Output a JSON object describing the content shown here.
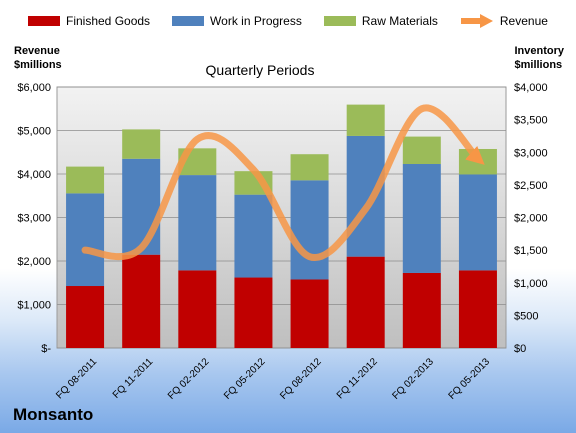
{
  "company": "Monsanto",
  "chart_data": {
    "type": "bar",
    "title": "Quarterly Periods",
    "categories": [
      "FQ 08-2011",
      "FQ 11-2011",
      "FQ 02-2012",
      "FQ 05-2012",
      "FQ 08-2012",
      "FQ 11-2012",
      "FQ 02-2013",
      "FQ 05-2013"
    ],
    "stacked": true,
    "series": [
      {
        "name": "Finished Goods",
        "axis": "right",
        "color": "#c00000",
        "values": [
          950,
          1430,
          1190,
          1080,
          1050,
          1400,
          1150,
          1190
        ]
      },
      {
        "name": "Work in Progress",
        "axis": "right",
        "color": "#4f81bd",
        "values": [
          1420,
          1470,
          1460,
          1270,
          1520,
          1850,
          1670,
          1470
        ]
      },
      {
        "name": "Raw Materials",
        "axis": "right",
        "color": "#9bbb59",
        "values": [
          410,
          450,
          410,
          360,
          400,
          480,
          420,
          390
        ]
      }
    ],
    "line_series": {
      "name": "Revenue",
      "axis": "left",
      "color": "#f79646",
      "values": [
        2250,
        2300,
        4800,
        4100,
        2100,
        3200,
        5500,
        4350
      ]
    },
    "left_axis": {
      "label_line1": "Revenue",
      "label_line2": "$millions",
      "ylim": [
        0,
        6000
      ],
      "ticks": [
        "$-",
        "$1,000",
        "$2,000",
        "$3,000",
        "$4,000",
        "$5,000",
        "$6,000"
      ],
      "tick_values": [
        0,
        1000,
        2000,
        3000,
        4000,
        5000,
        6000
      ]
    },
    "right_axis": {
      "label_line1": "Inventory",
      "label_line2": "$millions",
      "ylim": [
        0,
        4000
      ],
      "ticks": [
        "$0",
        "$500",
        "$1,000",
        "$1,500",
        "$2,000",
        "$2,500",
        "$3,000",
        "$3,500",
        "$4,000"
      ],
      "tick_values": [
        0,
        500,
        1000,
        1500,
        2000,
        2500,
        3000,
        3500,
        4000
      ]
    },
    "grid": true,
    "legend_position": "top"
  }
}
